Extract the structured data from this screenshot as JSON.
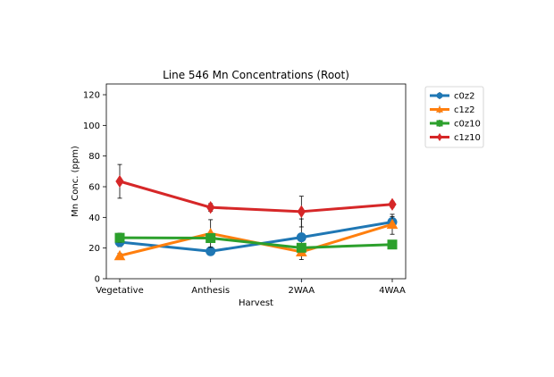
{
  "chart_data": {
    "type": "line",
    "title": "Line 546 Mn Concentrations (Root)",
    "xlabel": "Harvest",
    "ylabel": "Mn Conc. (ppm)",
    "categories": [
      "Vegetative",
      "Anthesis",
      "2WAA",
      "4WAA"
    ],
    "ylim": [
      0,
      127
    ],
    "yticks": [
      0,
      20,
      40,
      60,
      80,
      100,
      120
    ],
    "grid": false,
    "legend_position": "outside right, top",
    "series": [
      {
        "name": "c0z2",
        "color": "#1f77b4",
        "marker": "circle",
        "values": [
          23.9,
          17.9,
          27.0,
          37.0
        ],
        "errors": [
          3.0,
          1.5,
          12.0,
          3.5
        ]
      },
      {
        "name": "c1z2",
        "color": "#ff7f0e",
        "marker": "triangle",
        "values": [
          15.0,
          29.5,
          17.5,
          35.5
        ],
        "errors": [
          1.5,
          9.0,
          5.0,
          6.5
        ]
      },
      {
        "name": "c0z10",
        "color": "#2ca02c",
        "marker": "square",
        "values": [
          26.7,
          26.5,
          20.2,
          22.3
        ],
        "errors": [
          3.0,
          2.0,
          1.5,
          1.0
        ]
      },
      {
        "name": "c1z10",
        "color": "#d62728",
        "marker": "diamond",
        "values": [
          63.5,
          46.5,
          43.8,
          48.5
        ],
        "errors": [
          11.0,
          2.5,
          10.0,
          2.0
        ]
      }
    ]
  }
}
